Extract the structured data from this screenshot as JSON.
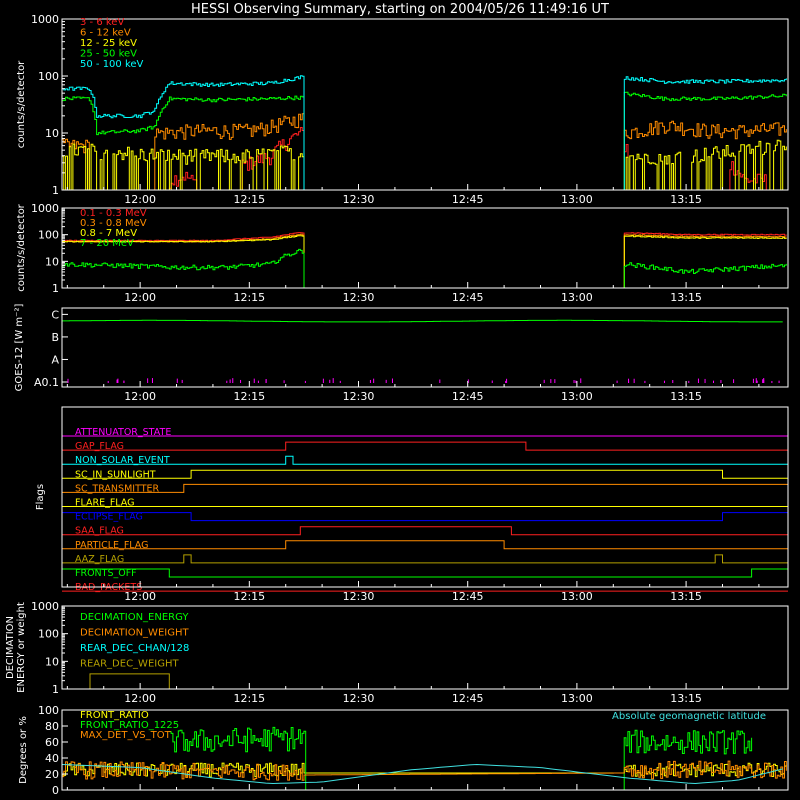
{
  "figure": {
    "title": "HESSI Observing Summary, starting on 2004/05/26 11:49:16 UT",
    "background": "#000000",
    "foreground": "#ffffff"
  },
  "chart_data": [
    {
      "type": "line",
      "panel": "hxr-low",
      "ylabel": "counts/s/detector",
      "yscale": "log",
      "ylim": [
        1,
        1000
      ],
      "yticks": [
        "1",
        "10",
        "100",
        "1000"
      ],
      "xlim": [
        "11:49:16",
        "13:29:00"
      ],
      "xticks": [
        "12:00",
        "12:15",
        "12:30",
        "12:45",
        "13:00",
        "13:15"
      ],
      "series": [
        {
          "name": "3 - 6 keV",
          "color": "#ff2020",
          "data": [
            [
              "12:04",
              1.5
            ],
            [
              "12:06",
              1.8
            ],
            [
              "12:08",
              1.2
            ],
            [
              "12:15",
              3
            ],
            [
              "12:18",
              4
            ],
            [
              "12:22",
              10
            ],
            [
              "13:07",
              6
            ],
            [
              "13:12",
              4
            ],
            [
              "13:18",
              5
            ],
            [
              "13:23",
              1.5
            ],
            [
              "13:26",
              1.5
            ]
          ]
        },
        {
          "name": "6 - 12 keV",
          "color": "#ff8c00",
          "data": [
            [
              "11:49",
              6
            ],
            [
              "11:53",
              6
            ],
            [
              "12:02",
              10
            ],
            [
              "12:08",
              11
            ],
            [
              "12:15",
              11
            ],
            [
              "12:18",
              13
            ],
            [
              "12:22",
              18
            ],
            [
              "13:06",
              10
            ],
            [
              "13:10",
              12
            ],
            [
              "13:12",
              14
            ],
            [
              "13:18",
              11
            ],
            [
              "13:23",
              11
            ],
            [
              "13:29",
              12
            ]
          ]
        },
        {
          "name": "12 - 25 keV",
          "color": "#ffff00",
          "data": [
            [
              "11:49",
              5
            ],
            [
              "11:53",
              5
            ],
            [
              "12:04",
              4
            ],
            [
              "12:10",
              4
            ],
            [
              "12:15",
              4
            ],
            [
              "12:22",
              5
            ],
            [
              "13:06",
              4
            ],
            [
              "13:15",
              4
            ],
            [
              "13:23",
              5
            ],
            [
              "13:29",
              7
            ]
          ]
        },
        {
          "name": "25 - 50 keV",
          "color": "#00ff00",
          "data": [
            [
              "11:49",
              40
            ],
            [
              "11:53",
              40
            ],
            [
              "11:54",
              10
            ],
            [
              "12:00",
              11
            ],
            [
              "12:02",
              13
            ],
            [
              "12:04",
              40
            ],
            [
              "12:10",
              38
            ],
            [
              "12:18",
              40
            ],
            [
              "12:22",
              42
            ],
            [
              "13:06",
              50
            ],
            [
              "13:12",
              40
            ],
            [
              "13:20",
              40
            ],
            [
              "13:29",
              45
            ]
          ]
        },
        {
          "name": "50 - 100 keV",
          "color": "#00ffff",
          "data": [
            [
              "11:49",
              60
            ],
            [
              "11:53",
              60
            ],
            [
              "11:54",
              20
            ],
            [
              "12:00",
              20
            ],
            [
              "12:02",
              25
            ],
            [
              "12:04",
              75
            ],
            [
              "12:10",
              70
            ],
            [
              "12:18",
              75
            ],
            [
              "12:22",
              95
            ],
            [
              "13:06",
              95
            ],
            [
              "13:12",
              80
            ],
            [
              "13:20",
              80
            ],
            [
              "13:29",
              85
            ]
          ]
        }
      ]
    },
    {
      "type": "line",
      "panel": "gamma",
      "ylabel": "counts/s/detector",
      "yscale": "log",
      "ylim": [
        1,
        1000
      ],
      "yticks": [
        "1",
        "10",
        "100",
        "1000"
      ],
      "xticks": [
        "12:00",
        "12:15",
        "12:30",
        "12:45",
        "13:00",
        "13:15"
      ],
      "series": [
        {
          "name": "0.1 - 0.3 MeV",
          "color": "#ff2020",
          "data": [
            [
              "11:49",
              60
            ],
            [
              "12:10",
              60
            ],
            [
              "12:18",
              80
            ],
            [
              "12:22",
              120
            ],
            [
              "13:06",
              120
            ],
            [
              "13:15",
              100
            ],
            [
              "13:29",
              100
            ]
          ]
        },
        {
          "name": "0.3 - 0.8 MeV",
          "color": "#ff8c00",
          "data": [
            [
              "11:49",
              55
            ],
            [
              "12:10",
              55
            ],
            [
              "12:18",
              70
            ],
            [
              "12:22",
              100
            ],
            [
              "13:06",
              100
            ],
            [
              "13:15",
              85
            ],
            [
              "13:29",
              85
            ]
          ]
        },
        {
          "name": "0.8 - 7 MeV",
          "color": "#ffff00",
          "data": [
            [
              "11:49",
              55
            ],
            [
              "12:10",
              55
            ],
            [
              "12:18",
              65
            ],
            [
              "12:22",
              90
            ],
            [
              "13:06",
              90
            ],
            [
              "13:15",
              75
            ],
            [
              "13:29",
              75
            ]
          ]
        },
        {
          "name": "7 - 20 MeV",
          "color": "#00ff00",
          "data": [
            [
              "11:49",
              8
            ],
            [
              "12:05",
              6
            ],
            [
              "12:12",
              6
            ],
            [
              "12:18",
              8
            ],
            [
              "12:22",
              25
            ],
            [
              "13:06",
              8
            ],
            [
              "13:15",
              4
            ],
            [
              "13:29",
              7
            ]
          ]
        }
      ]
    },
    {
      "type": "line",
      "panel": "goes",
      "ylabel": "GOES-12 [W m⁻²]",
      "yticks": [
        "A0.1",
        "A",
        "B",
        "C"
      ],
      "series": [
        {
          "name": "GOES",
          "color": "#00ff00",
          "level": 2.7
        }
      ]
    },
    {
      "type": "line",
      "panel": "flags",
      "ylabel": "Flags",
      "series": [
        {
          "name": "ATTENUATOR_STATE",
          "color": "#ff00ff",
          "steps": [
            [
              "11:49",
              0
            ]
          ]
        },
        {
          "name": "GAP_FLAG",
          "color": "#ff2020",
          "steps": [
            [
              "11:49",
              0
            ],
            [
              "12:20",
              1
            ],
            [
              "12:53",
              0
            ]
          ]
        },
        {
          "name": "NON_SOLAR_EVENT",
          "color": "#00ffff",
          "steps": [
            [
              "11:49",
              0
            ],
            [
              "12:20",
              1
            ],
            [
              "12:21",
              0
            ]
          ]
        },
        {
          "name": "SC_IN_SUNLIGHT",
          "color": "#ffff00",
          "steps": [
            [
              "11:49",
              0
            ],
            [
              "12:07",
              1
            ],
            [
              "13:20",
              0
            ]
          ]
        },
        {
          "name": "SC_TRANSMITTER",
          "color": "#ff8c00",
          "steps": [
            [
              "11:49",
              0
            ],
            [
              "12:06",
              1
            ]
          ]
        },
        {
          "name": "FLARE_FLAG",
          "color": "#ffff00",
          "steps": [
            [
              "11:49",
              0
            ]
          ]
        },
        {
          "name": "ECLIPSE_FLAG",
          "color": "#0000ff",
          "steps": [
            [
              "11:49",
              1
            ],
            [
              "12:07",
              0
            ],
            [
              "13:20",
              1
            ]
          ]
        },
        {
          "name": "SAA_FLAG",
          "color": "#ff2020",
          "steps": [
            [
              "11:49",
              0
            ],
            [
              "12:22",
              1
            ],
            [
              "12:51",
              0
            ]
          ]
        },
        {
          "name": "PARTICLE_FLAG",
          "color": "#ff8c00",
          "steps": [
            [
              "11:49",
              0
            ],
            [
              "12:20",
              1
            ],
            [
              "12:50",
              0
            ]
          ]
        },
        {
          "name": "AAZ_FLAG",
          "color": "#b4a000",
          "steps": [
            [
              "11:49",
              0
            ],
            [
              "12:06",
              1
            ],
            [
              "12:07",
              0
            ],
            [
              "13:19",
              1
            ],
            [
              "13:20",
              0
            ]
          ]
        },
        {
          "name": "FRONTS_OFF",
          "color": "#00ff00",
          "steps": [
            [
              "11:49",
              1
            ],
            [
              "12:04",
              0
            ],
            [
              "13:24",
              1
            ]
          ]
        },
        {
          "name": "BAD_PACKETS",
          "color": "#ff2020",
          "steps": [
            [
              "11:49",
              0
            ]
          ]
        }
      ]
    },
    {
      "type": "line",
      "panel": "decimation",
      "ylabel": "DECIMATION ENERGY or weight",
      "yscale": "log",
      "ylim": [
        1,
        1000
      ],
      "yticks": [
        "1",
        "10",
        "100",
        "1000"
      ],
      "series": [
        {
          "name": "DECIMATION_ENERGY",
          "color": "#00ff00",
          "data": []
        },
        {
          "name": "DECIMATION_WEIGHT",
          "color": "#ff8c00",
          "data": []
        },
        {
          "name": "REAR_DEC_CHAN/128",
          "color": "#00ffff",
          "data": []
        },
        {
          "name": "REAR_DEC_WEIGHT",
          "color": "#b4a000",
          "data": [
            [
              "11:49",
              1
            ],
            [
              "11:51",
              1
            ],
            [
              "11:51",
              3.5
            ],
            [
              "12:04",
              3.5
            ],
            [
              "12:04",
              1
            ],
            [
              "13:29",
              1
            ]
          ]
        }
      ]
    },
    {
      "type": "line",
      "panel": "ratios",
      "ylabel": "Degrees or %",
      "ylim": [
        0,
        100
      ],
      "yticks": [
        "0",
        "20",
        "40",
        "60",
        "80",
        "100"
      ],
      "annotation": "Absolute geomagnetic latitude",
      "series": [
        {
          "name": "FRONT_RATIO",
          "color": "#ffff00",
          "data": [
            [
              "11:49",
              25
            ],
            [
              "12:22",
              25
            ],
            [
              "13:06",
              25
            ],
            [
              "13:29",
              25
            ]
          ]
        },
        {
          "name": "FRONT_RATIO_1225",
          "color": "#00ff00",
          "data": [
            [
              "12:04",
              60
            ],
            [
              "12:22",
              65
            ],
            [
              "13:06",
              60
            ],
            [
              "13:24",
              60
            ]
          ]
        },
        {
          "name": "MAX_DET_VS_TOT",
          "color": "#ff8c00",
          "data": [
            [
              "11:49",
              25
            ],
            [
              "12:22",
              22
            ],
            [
              "13:06",
              25
            ],
            [
              "13:29",
              25
            ]
          ]
        },
        {
          "name": "Absolute geomagnetic latitude",
          "color": "#40e0e0",
          "data": [
            [
              "11:49",
              32
            ],
            [
              "12:00",
              28
            ],
            [
              "12:10",
              15
            ],
            [
              "12:18",
              8
            ],
            [
              "12:25",
              10
            ],
            [
              "12:37",
              25
            ],
            [
              "12:46",
              32
            ],
            [
              "12:55",
              28
            ],
            [
              "13:07",
              15
            ],
            [
              "13:16",
              8
            ],
            [
              "13:22",
              12
            ],
            [
              "13:29",
              28
            ]
          ]
        }
      ]
    }
  ]
}
